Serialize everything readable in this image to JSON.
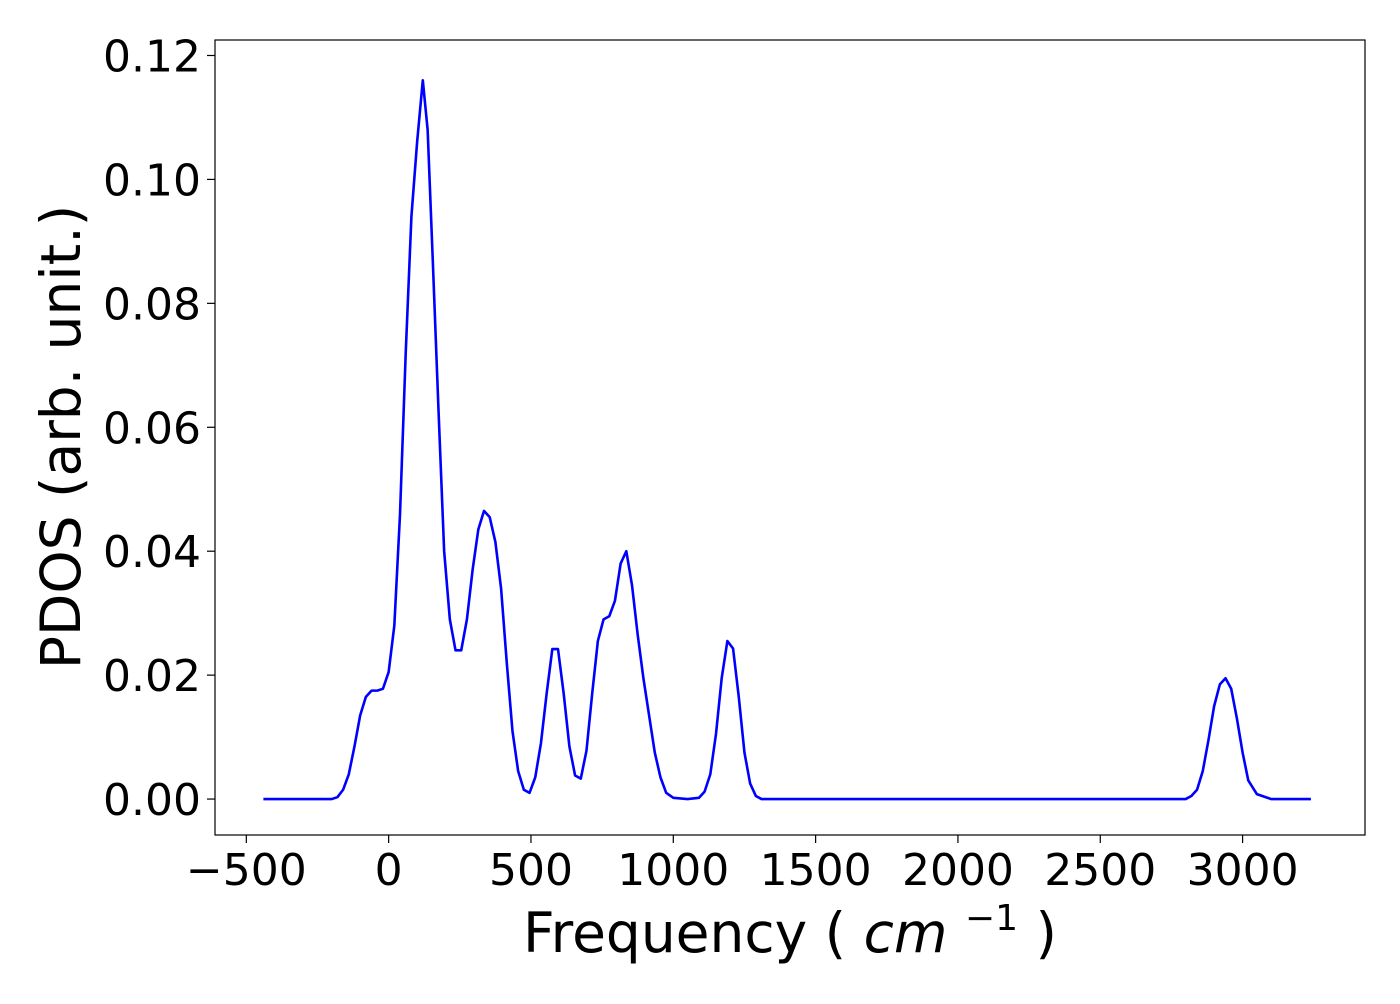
{
  "chart_data": {
    "type": "line",
    "title": "",
    "xlabel": "Frequency",
    "xlabel_unit_base": "cm",
    "xlabel_unit_exponent": "−1",
    "ylabel": "PDOS (arb. unit.)",
    "xlim": [
      -610,
      3430
    ],
    "ylim": [
      -0.0058,
      0.1225
    ],
    "xticks": [
      -500,
      0,
      500,
      1000,
      1500,
      2000,
      2500,
      3000
    ],
    "xtick_labels": [
      "−500",
      "0",
      "500",
      "1000",
      "1500",
      "2000",
      "2500",
      "3000"
    ],
    "yticks": [
      0.0,
      0.02,
      0.04,
      0.06,
      0.08,
      0.1,
      0.12
    ],
    "ytick_labels": [
      "0.00",
      "0.02",
      "0.04",
      "0.06",
      "0.08",
      "0.10",
      "0.12"
    ],
    "grid": false,
    "series": [
      {
        "color": "#0000ff",
        "x": [
          -440,
          -300,
          -250,
          -200,
          -180,
          -160,
          -140,
          -120,
          -100,
          -80,
          -60,
          -40,
          -20,
          0,
          20,
          40,
          60,
          80,
          100,
          120,
          137,
          155,
          175,
          195,
          215,
          235,
          255,
          275,
          295,
          315,
          335,
          355,
          375,
          395,
          415,
          435,
          455,
          475,
          495,
          515,
          535,
          555,
          575,
          595,
          615,
          635,
          655,
          675,
          695,
          715,
          735,
          755,
          775,
          795,
          815,
          835,
          855,
          875,
          895,
          915,
          935,
          955,
          975,
          1000,
          1050,
          1090,
          1110,
          1130,
          1150,
          1170,
          1190,
          1210,
          1230,
          1250,
          1270,
          1290,
          1310,
          1350,
          2800,
          2820,
          2840,
          2860,
          2880,
          2900,
          2920,
          2940,
          2960,
          2980,
          3000,
          3020,
          3050,
          3100,
          3240
        ],
        "values": [
          0.0,
          0.0,
          0.0,
          0.0,
          0.0003,
          0.0015,
          0.004,
          0.0085,
          0.0135,
          0.0165,
          0.0175,
          0.0175,
          0.0178,
          0.0205,
          0.028,
          0.046,
          0.072,
          0.094,
          0.106,
          0.116,
          0.108,
          0.087,
          0.063,
          0.04,
          0.029,
          0.024,
          0.024,
          0.029,
          0.037,
          0.0435,
          0.0465,
          0.0455,
          0.0415,
          0.034,
          0.022,
          0.011,
          0.0045,
          0.0015,
          0.001,
          0.0035,
          0.009,
          0.017,
          0.0242,
          0.0242,
          0.017,
          0.0085,
          0.0038,
          0.0033,
          0.0078,
          0.017,
          0.0255,
          0.029,
          0.0295,
          0.032,
          0.038,
          0.04,
          0.0345,
          0.0265,
          0.0195,
          0.0135,
          0.0075,
          0.0035,
          0.001,
          0.0002,
          0.0,
          0.0002,
          0.0012,
          0.004,
          0.0105,
          0.0195,
          0.0255,
          0.0243,
          0.0165,
          0.0075,
          0.0025,
          0.0005,
          0.0,
          0.0,
          0.0,
          0.0005,
          0.0015,
          0.0045,
          0.0095,
          0.015,
          0.0185,
          0.0195,
          0.0178,
          0.013,
          0.0075,
          0.003,
          0.0008,
          0.0,
          0.0
        ]
      }
    ]
  }
}
